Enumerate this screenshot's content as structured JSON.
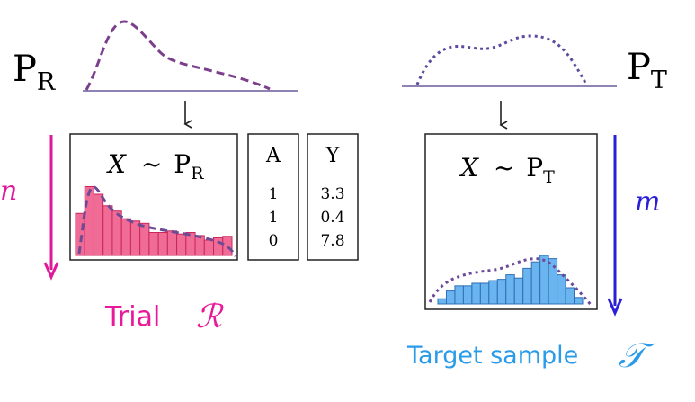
{
  "trial": {
    "dist_symbol": "P",
    "dist_subscript": "R",
    "sample_size_symbol": "n",
    "caption_text": "Trial",
    "caption_symbol": "ℛ",
    "box_label_var": "X",
    "box_label_tilde": "~",
    "box_label_dist": "P",
    "box_label_sub": "R",
    "table": {
      "columns": [
        {
          "header": "A",
          "values": [
            "1",
            "1",
            "0"
          ]
        },
        {
          "header": "Y",
          "values": [
            "3.3",
            "0.4",
            "7.8"
          ]
        }
      ]
    },
    "histogram_bars": [
      0.55,
      0.9,
      0.8,
      0.65,
      0.58,
      0.48,
      0.45,
      0.42,
      0.3,
      0.3,
      0.32,
      0.28,
      0.3,
      0.26,
      0.2,
      0.23,
      0.25
    ],
    "colors": {
      "curve": "#7b3f8c",
      "bar_fill": "#f06b95",
      "bar_stroke": "#c8285a",
      "arrow": "#e0189a",
      "caption": "#e81a9a"
    }
  },
  "target": {
    "dist_symbol": "P",
    "dist_subscript": "T",
    "sample_size_symbol": "m",
    "caption_text": "Target sample",
    "caption_symbol": "𝒯",
    "box_label_var": "X",
    "box_label_tilde": "~",
    "box_label_dist": "P",
    "box_label_sub": "T",
    "histogram_bars": [
      0.08,
      0.2,
      0.28,
      0.28,
      0.32,
      0.32,
      0.36,
      0.38,
      0.45,
      0.4,
      0.55,
      0.65,
      0.75,
      0.7,
      0.45,
      0.25,
      0.1
    ],
    "colors": {
      "curve": "#5d4a9e",
      "bar_fill": "#6ab4f0",
      "bar_stroke": "#2f6fb5",
      "arrow": "#2a1fd6",
      "caption": "#2a9be8"
    }
  },
  "colors": {
    "baseline": "#6a5a9a",
    "box_border": "#222222",
    "small_arrow": "#222222"
  }
}
